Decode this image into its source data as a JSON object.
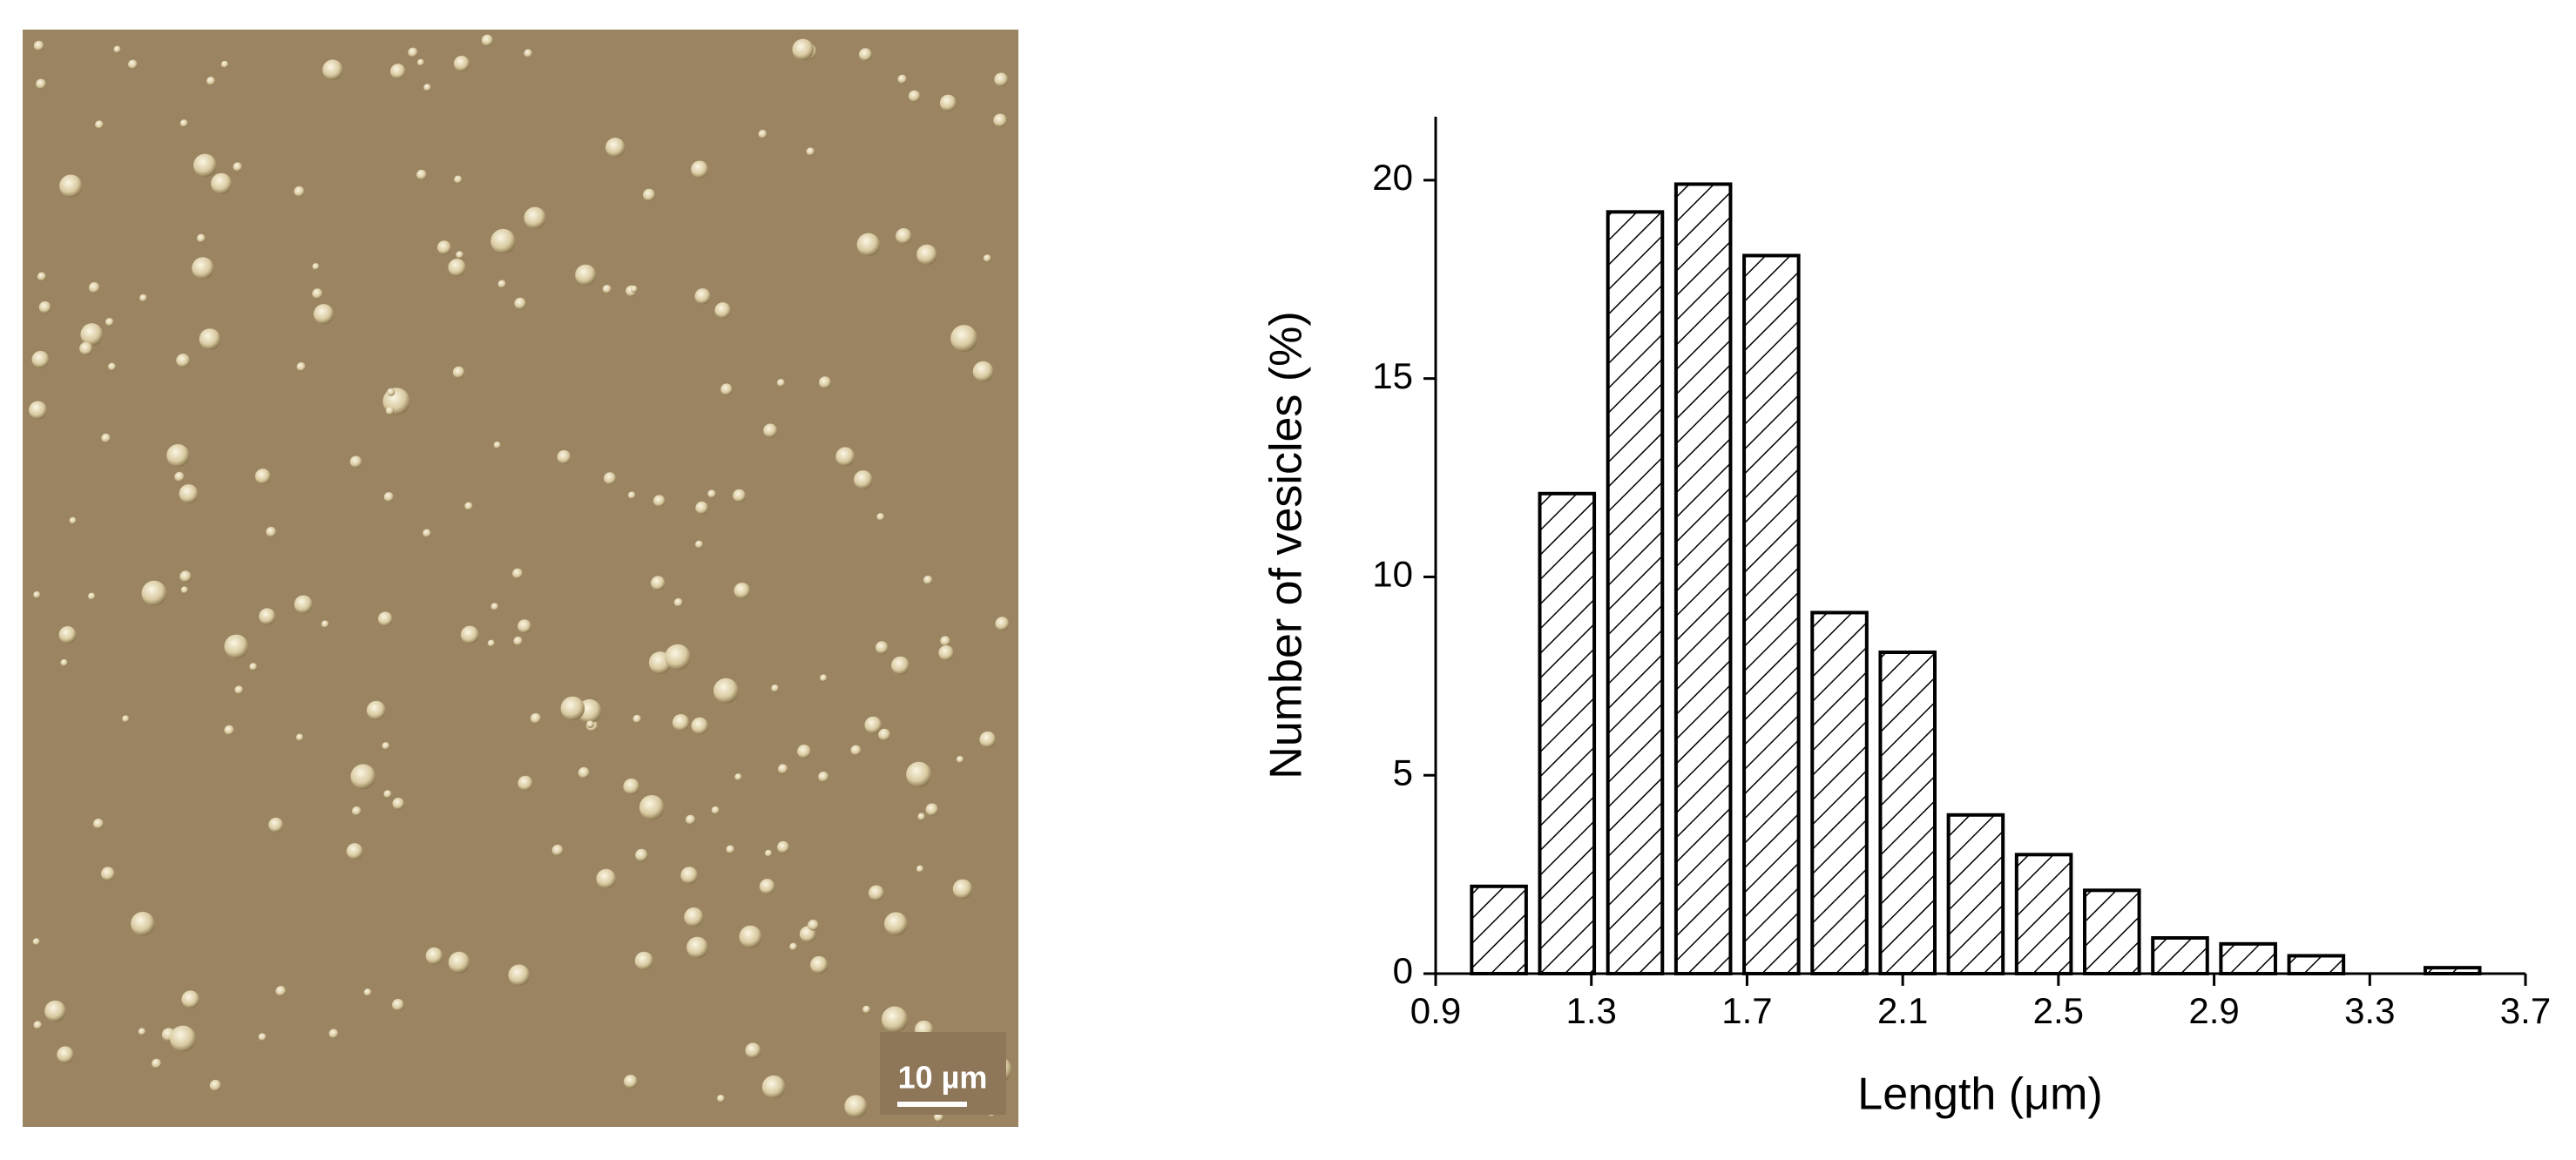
{
  "micrograph": {
    "scale_bar": "10 µm"
  },
  "chart_data": {
    "type": "histogram",
    "x_label": "Length (μm)",
    "y_label": "Number of vesicles (%)",
    "bins": [
      0.975,
      1.15,
      1.325,
      1.5,
      1.675,
      1.85,
      2.025,
      2.2,
      2.375,
      2.55,
      2.725,
      2.9,
      3.075,
      3.25,
      3.425,
      3.6
    ],
    "values": [
      2.2,
      12.1,
      19.2,
      19.9,
      18.1,
      9.1,
      8.1,
      4.0,
      3.0,
      2.1,
      0.9,
      0.75,
      0.45,
      0,
      0.15
    ],
    "color": "#000000",
    "xlim": [
      0.9,
      3.7
    ],
    "xticks": [
      0.9,
      1.3,
      1.7,
      2.1,
      2.5,
      2.9,
      3.3,
      3.7
    ],
    "ylim": [
      0,
      21.6
    ],
    "yticks": [
      0,
      5,
      10,
      15,
      20
    ]
  }
}
